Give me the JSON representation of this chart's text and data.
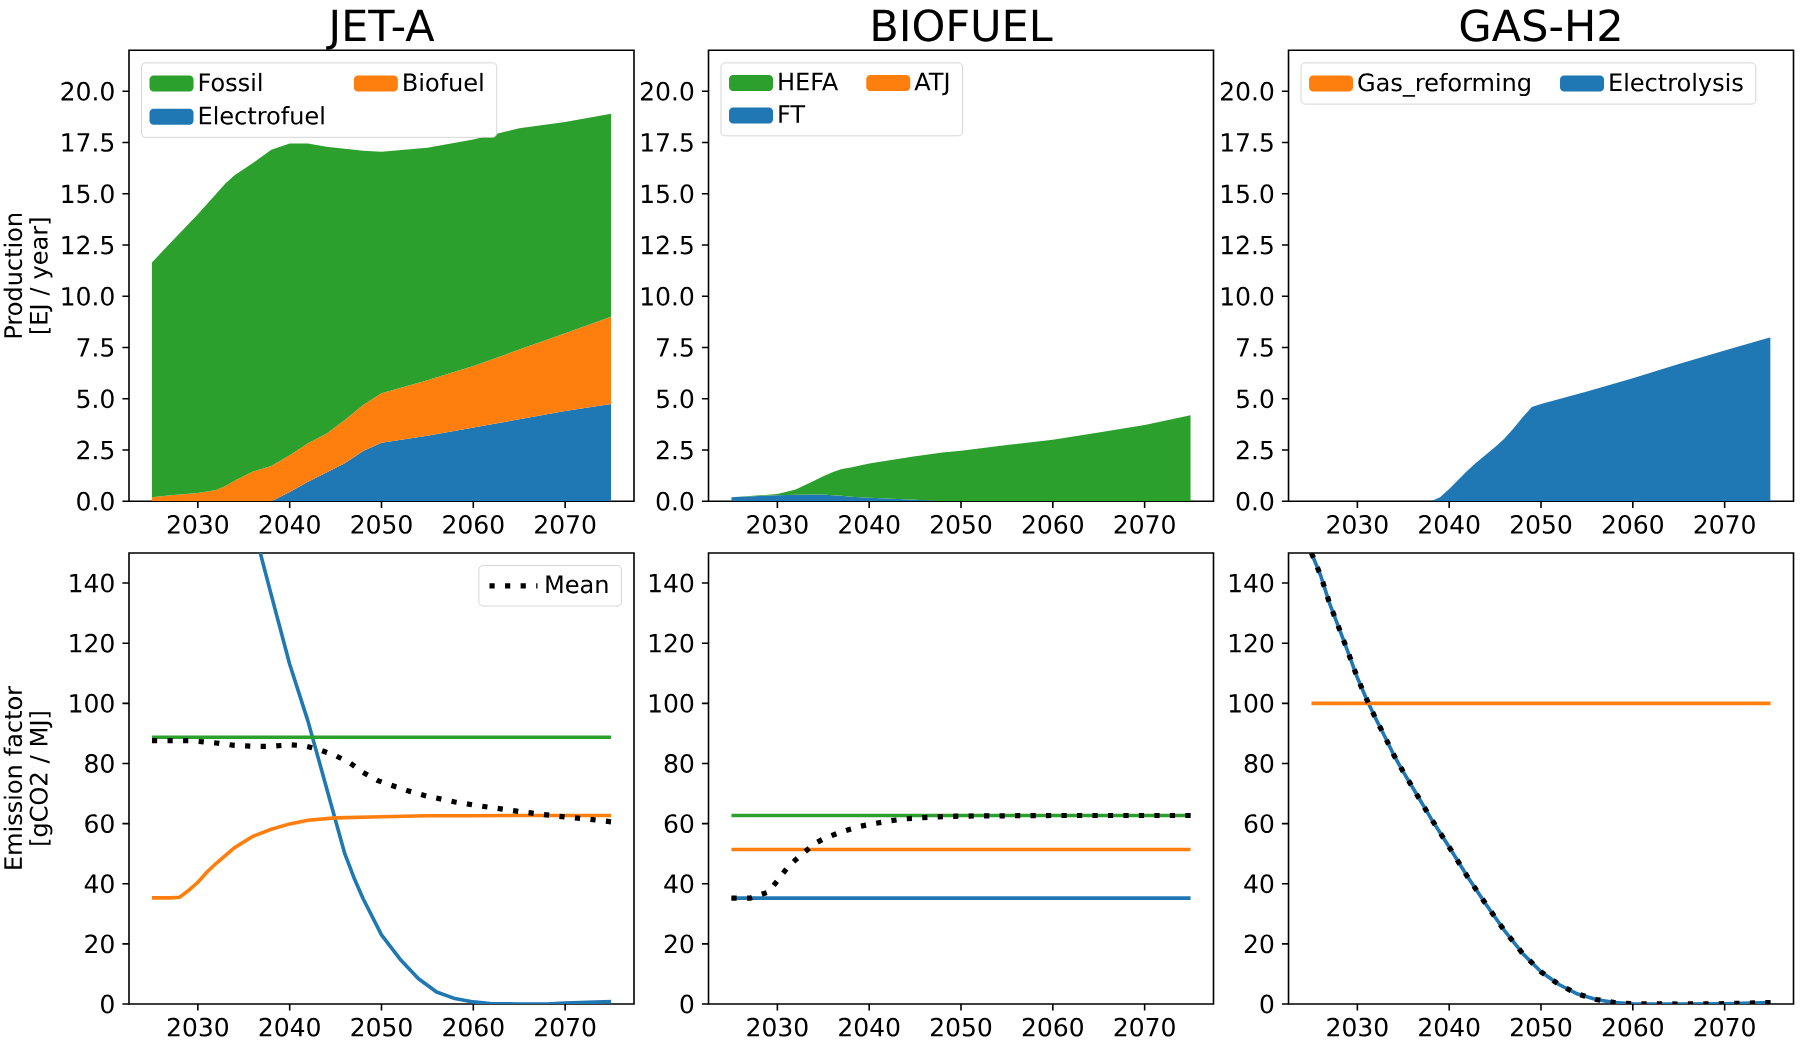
{
  "chart_data": [
    {
      "type": "area",
      "title": "JET-A",
      "ylabel": "Production [EJ / year]",
      "stacked": true,
      "legend": "top left",
      "x": [
        2025,
        2027,
        2030,
        2032,
        2033,
        2034,
        2036,
        2038,
        2040,
        2042,
        2044,
        2046,
        2048,
        2050,
        2055,
        2060,
        2065,
        2070,
        2075
      ],
      "series": [
        {
          "name": "Electrofuel",
          "color": "#1f77b4",
          "values": [
            0,
            0,
            0,
            0,
            0,
            0,
            0,
            0,
            0.45,
            0.95,
            1.4,
            1.85,
            2.45,
            2.85,
            3.2,
            3.6,
            4.0,
            4.4,
            4.75
          ]
        },
        {
          "name": "Biofuel",
          "color": "#ff7f0e",
          "values": [
            0.2,
            0.3,
            0.4,
            0.55,
            0.75,
            1.0,
            1.45,
            1.72,
            1.8,
            1.88,
            1.9,
            2.12,
            2.25,
            2.42,
            2.7,
            3.0,
            3.4,
            3.8,
            4.25
          ]
        },
        {
          "name": "Fossil",
          "color": "#2ca02c",
          "values": [
            11.45,
            12.3,
            13.6,
            14.45,
            14.75,
            14.9,
            15.05,
            15.43,
            15.2,
            14.62,
            14.0,
            13.23,
            12.4,
            11.78,
            11.35,
            11.05,
            10.8,
            10.3,
            9.9
          ]
        }
      ],
      "xlim": [
        2022.5,
        2077.5
      ],
      "xticks": [
        2030,
        2040,
        2050,
        2060,
        2070
      ],
      "ylim": [
        0,
        22
      ],
      "yticks": [
        {
          "value": 0,
          "label": "0.0"
        },
        2.5,
        {
          "value": 5,
          "label": "5.0"
        },
        7.5,
        {
          "value": 10,
          "label": "10.0"
        },
        12.5,
        {
          "value": 15,
          "label": "15.0"
        },
        17.5,
        {
          "value": 20,
          "label": "20.0"
        }
      ]
    },
    {
      "type": "area",
      "title": "BIOFUEL",
      "stacked": true,
      "legend": "top left",
      "x": [
        2025,
        2030,
        2032,
        2034,
        2035,
        2036,
        2037,
        2038,
        2040,
        2045,
        2048,
        2050,
        2055,
        2060,
        2065,
        2070,
        2075
      ],
      "series": [
        {
          "name": "FT",
          "color": "#1f77b4",
          "values": [
            0.2,
            0.3,
            0.32,
            0.33,
            0.33,
            0.3,
            0.27,
            0.22,
            0.17,
            0.07,
            0.02,
            0,
            0,
            0,
            0,
            0,
            0
          ]
        },
        {
          "name": "ATJ",
          "color": "#ff7f0e",
          "values": [
            null,
            null,
            null,
            null,
            null,
            null,
            null,
            null,
            null,
            null,
            null,
            null,
            null,
            null,
            null,
            null,
            null
          ]
        },
        {
          "name": "HEFA",
          "color": "#2ca02c",
          "values": [
            0,
            0.05,
            0.26,
            0.67,
            0.89,
            1.12,
            1.3,
            1.43,
            1.67,
            2.13,
            2.36,
            2.47,
            2.74,
            3.0,
            3.35,
            3.72,
            4.2
          ]
        }
      ],
      "xlim": [
        2022.5,
        2077.5
      ],
      "xticks": [
        2030,
        2040,
        2050,
        2060,
        2070
      ],
      "ylim": [
        0,
        22
      ],
      "yticks": [
        {
          "value": 0,
          "label": "0.0"
        },
        2.5,
        {
          "value": 5,
          "label": "5.0"
        },
        7.5,
        {
          "value": 10,
          "label": "10.0"
        },
        12.5,
        {
          "value": 15,
          "label": "15.0"
        },
        17.5,
        {
          "value": 20,
          "label": "20.0"
        }
      ]
    },
    {
      "type": "area",
      "title": "GAS-H2",
      "stacked": true,
      "legend": "top left",
      "x": [
        2025,
        2030,
        2035,
        2038,
        2039,
        2040,
        2042,
        2043,
        2045,
        2046,
        2047,
        2048,
        2049,
        2050,
        2055,
        2060,
        2065,
        2070,
        2075
      ],
      "series": [
        {
          "name": "Electrolysis",
          "color": "#1f77b4",
          "values": [
            0,
            0,
            0,
            0,
            0.2,
            0.6,
            1.5,
            1.9,
            2.65,
            3.05,
            3.55,
            4.1,
            4.6,
            4.75,
            5.35,
            6.0,
            6.7,
            7.35,
            8.0
          ]
        },
        {
          "name": "Gas_reforming",
          "color": "#ff7f0e",
          "values": [
            null,
            null,
            null,
            null,
            null,
            null,
            null,
            null,
            null,
            null,
            null,
            null,
            null,
            null,
            null,
            null,
            null,
            null,
            null
          ]
        }
      ],
      "xlim": [
        2022.5,
        2077.5
      ],
      "xticks": [
        2030,
        2040,
        2050,
        2060,
        2070
      ],
      "ylim": [
        0,
        22
      ],
      "yticks": [
        {
          "value": 0,
          "label": "0.0"
        },
        2.5,
        {
          "value": 5,
          "label": "5.0"
        },
        7.5,
        {
          "value": 10,
          "label": "10.0"
        },
        12.5,
        {
          "value": 15,
          "label": "15.0"
        },
        17.5,
        {
          "value": 20,
          "label": "20.0"
        }
      ]
    },
    {
      "type": "line",
      "ylabel": "Emission factor [gCO2 / MJ]",
      "legend": "top right",
      "series": [
        {
          "color": "#1f77b4",
          "x": [
            2036.8,
            2038,
            2040,
            2042,
            2044,
            2046,
            2047,
            2048,
            2050,
            2052,
            2054,
            2056,
            2058,
            2060,
            2062,
            2065,
            2068,
            2070,
            2075
          ],
          "values": [
            150,
            136,
            113,
            94,
            72,
            50,
            42,
            35,
            23,
            15,
            8.5,
            4,
            1.8,
            0.7,
            0.1,
            0,
            0,
            0.3,
            0.8
          ]
        },
        {
          "color": "#ff7f0e",
          "x": [
            2025,
            2026,
            2027,
            2028,
            2029,
            2030,
            2031,
            2032,
            2034,
            2036,
            2038,
            2040,
            2042,
            2045,
            2050,
            2055,
            2060,
            2065,
            2070,
            2075
          ],
          "values": [
            35.3,
            35.3,
            35.3,
            35.5,
            37.8,
            40.5,
            43.9,
            46.8,
            52.0,
            55.8,
            58.1,
            59.9,
            61.1,
            61.9,
            62.3,
            62.6,
            62.6,
            62.7,
            62.7,
            62.7
          ]
        },
        {
          "color": "#2ca02c",
          "x": [
            2025,
            2075
          ],
          "values": [
            88.7,
            88.7
          ]
        },
        {
          "name": "Mean",
          "color": "#000000",
          "line_style": "dotted",
          "x": [
            2025,
            2029,
            2032,
            2034,
            2036,
            2038,
            2040,
            2041.6,
            2043,
            2045,
            2046.5,
            2048,
            2049.6,
            2051.4,
            2053,
            2055,
            2058,
            2060,
            2063,
            2065,
            2068,
            2070,
            2073,
            2075
          ],
          "values": [
            87.6,
            87.6,
            86.8,
            86.0,
            85.7,
            85.7,
            86.2,
            85.9,
            84.8,
            82.6,
            80.3,
            77.0,
            74.3,
            72.4,
            70.8,
            69.1,
            67.2,
            66.2,
            64.9,
            64.0,
            62.9,
            62.2,
            61.3,
            60.6
          ]
        }
      ],
      "xlim": [
        2022.5,
        2077.5
      ],
      "xticks": [
        2030,
        2040,
        2050,
        2060,
        2070
      ],
      "ylim": [
        0,
        150
      ],
      "yticks": [
        0,
        20,
        40,
        60,
        80,
        100,
        120,
        140
      ]
    },
    {
      "type": "line",
      "series": [
        {
          "color": "#1f77b4",
          "x": [
            2025,
            2075
          ],
          "values": [
            35.2,
            35.2
          ]
        },
        {
          "color": "#ff7f0e",
          "x": [
            2025,
            2075
          ],
          "values": [
            51.4,
            51.4
          ]
        },
        {
          "color": "#2ca02c",
          "x": [
            2025,
            2075
          ],
          "values": [
            62.7,
            62.7
          ]
        },
        {
          "color": "#000000",
          "line_style": "dotted",
          "x": [
            2025,
            2027,
            2029,
            2030,
            2031,
            2032,
            2034,
            2035,
            2037,
            2039,
            2040,
            2042,
            2044,
            2046,
            2048,
            2050,
            2055,
            2060,
            2075
          ],
          "values": [
            35.2,
            35.2,
            37.2,
            41.0,
            45.0,
            48.0,
            53.2,
            54.9,
            57.3,
            59.1,
            59.7,
            60.8,
            61.6,
            62.0,
            62.3,
            62.5,
            62.6,
            62.7,
            62.7
          ]
        }
      ],
      "xlim": [
        2022.5,
        2077.5
      ],
      "xticks": [
        2030,
        2040,
        2050,
        2060,
        2070
      ],
      "ylim": [
        0,
        150
      ],
      "yticks": [
        0,
        20,
        40,
        60,
        80,
        100,
        120,
        140
      ]
    },
    {
      "type": "line",
      "series": [
        {
          "color": "#1f77b4",
          "x": [
            2025,
            2026,
            2027,
            2028,
            2029,
            2030,
            2031,
            2032,
            2033,
            2034,
            2035,
            2036,
            2038,
            2040,
            2042,
            2044,
            2046,
            2048,
            2050,
            2052,
            2054,
            2056,
            2058,
            2060,
            2065,
            2070,
            2075
          ],
          "values": [
            150,
            142.5,
            133,
            125,
            116.9,
            108.5,
            101.4,
            94.9,
            88.9,
            82.6,
            77.2,
            72.1,
            61.8,
            52.2,
            42.3,
            33.2,
            24.5,
            16.8,
            10.7,
            6.4,
            3.3,
            1.5,
            0.5,
            0.1,
            0,
            0.1,
            0.5
          ]
        },
        {
          "color": "#ff7f0e",
          "x": [
            2025,
            2075
          ],
          "values": [
            100,
            100
          ]
        },
        {
          "color": "#000000",
          "line_style": "dotted",
          "x": [
            2025,
            2026,
            2027,
            2028,
            2029,
            2030,
            2031,
            2032,
            2033,
            2034,
            2035,
            2036,
            2038,
            2040,
            2042,
            2044,
            2046,
            2048,
            2050,
            2052,
            2054,
            2056,
            2058,
            2060,
            2065,
            2070,
            2075
          ],
          "values": [
            150,
            142.5,
            133,
            125,
            116.9,
            108.5,
            101.4,
            94.9,
            88.9,
            82.6,
            77.2,
            72.1,
            61.8,
            52.2,
            42.3,
            33.2,
            24.5,
            16.8,
            10.7,
            6.4,
            3.3,
            1.5,
            0.5,
            0.1,
            0,
            0.1,
            0.5
          ]
        }
      ],
      "xlim": [
        2022.5,
        2077.5
      ],
      "xticks": [
        2030,
        2040,
        2050,
        2060,
        2070
      ],
      "ylim": [
        0,
        150
      ],
      "yticks": [
        0,
        20,
        40,
        60,
        80,
        100,
        120,
        140
      ]
    }
  ]
}
